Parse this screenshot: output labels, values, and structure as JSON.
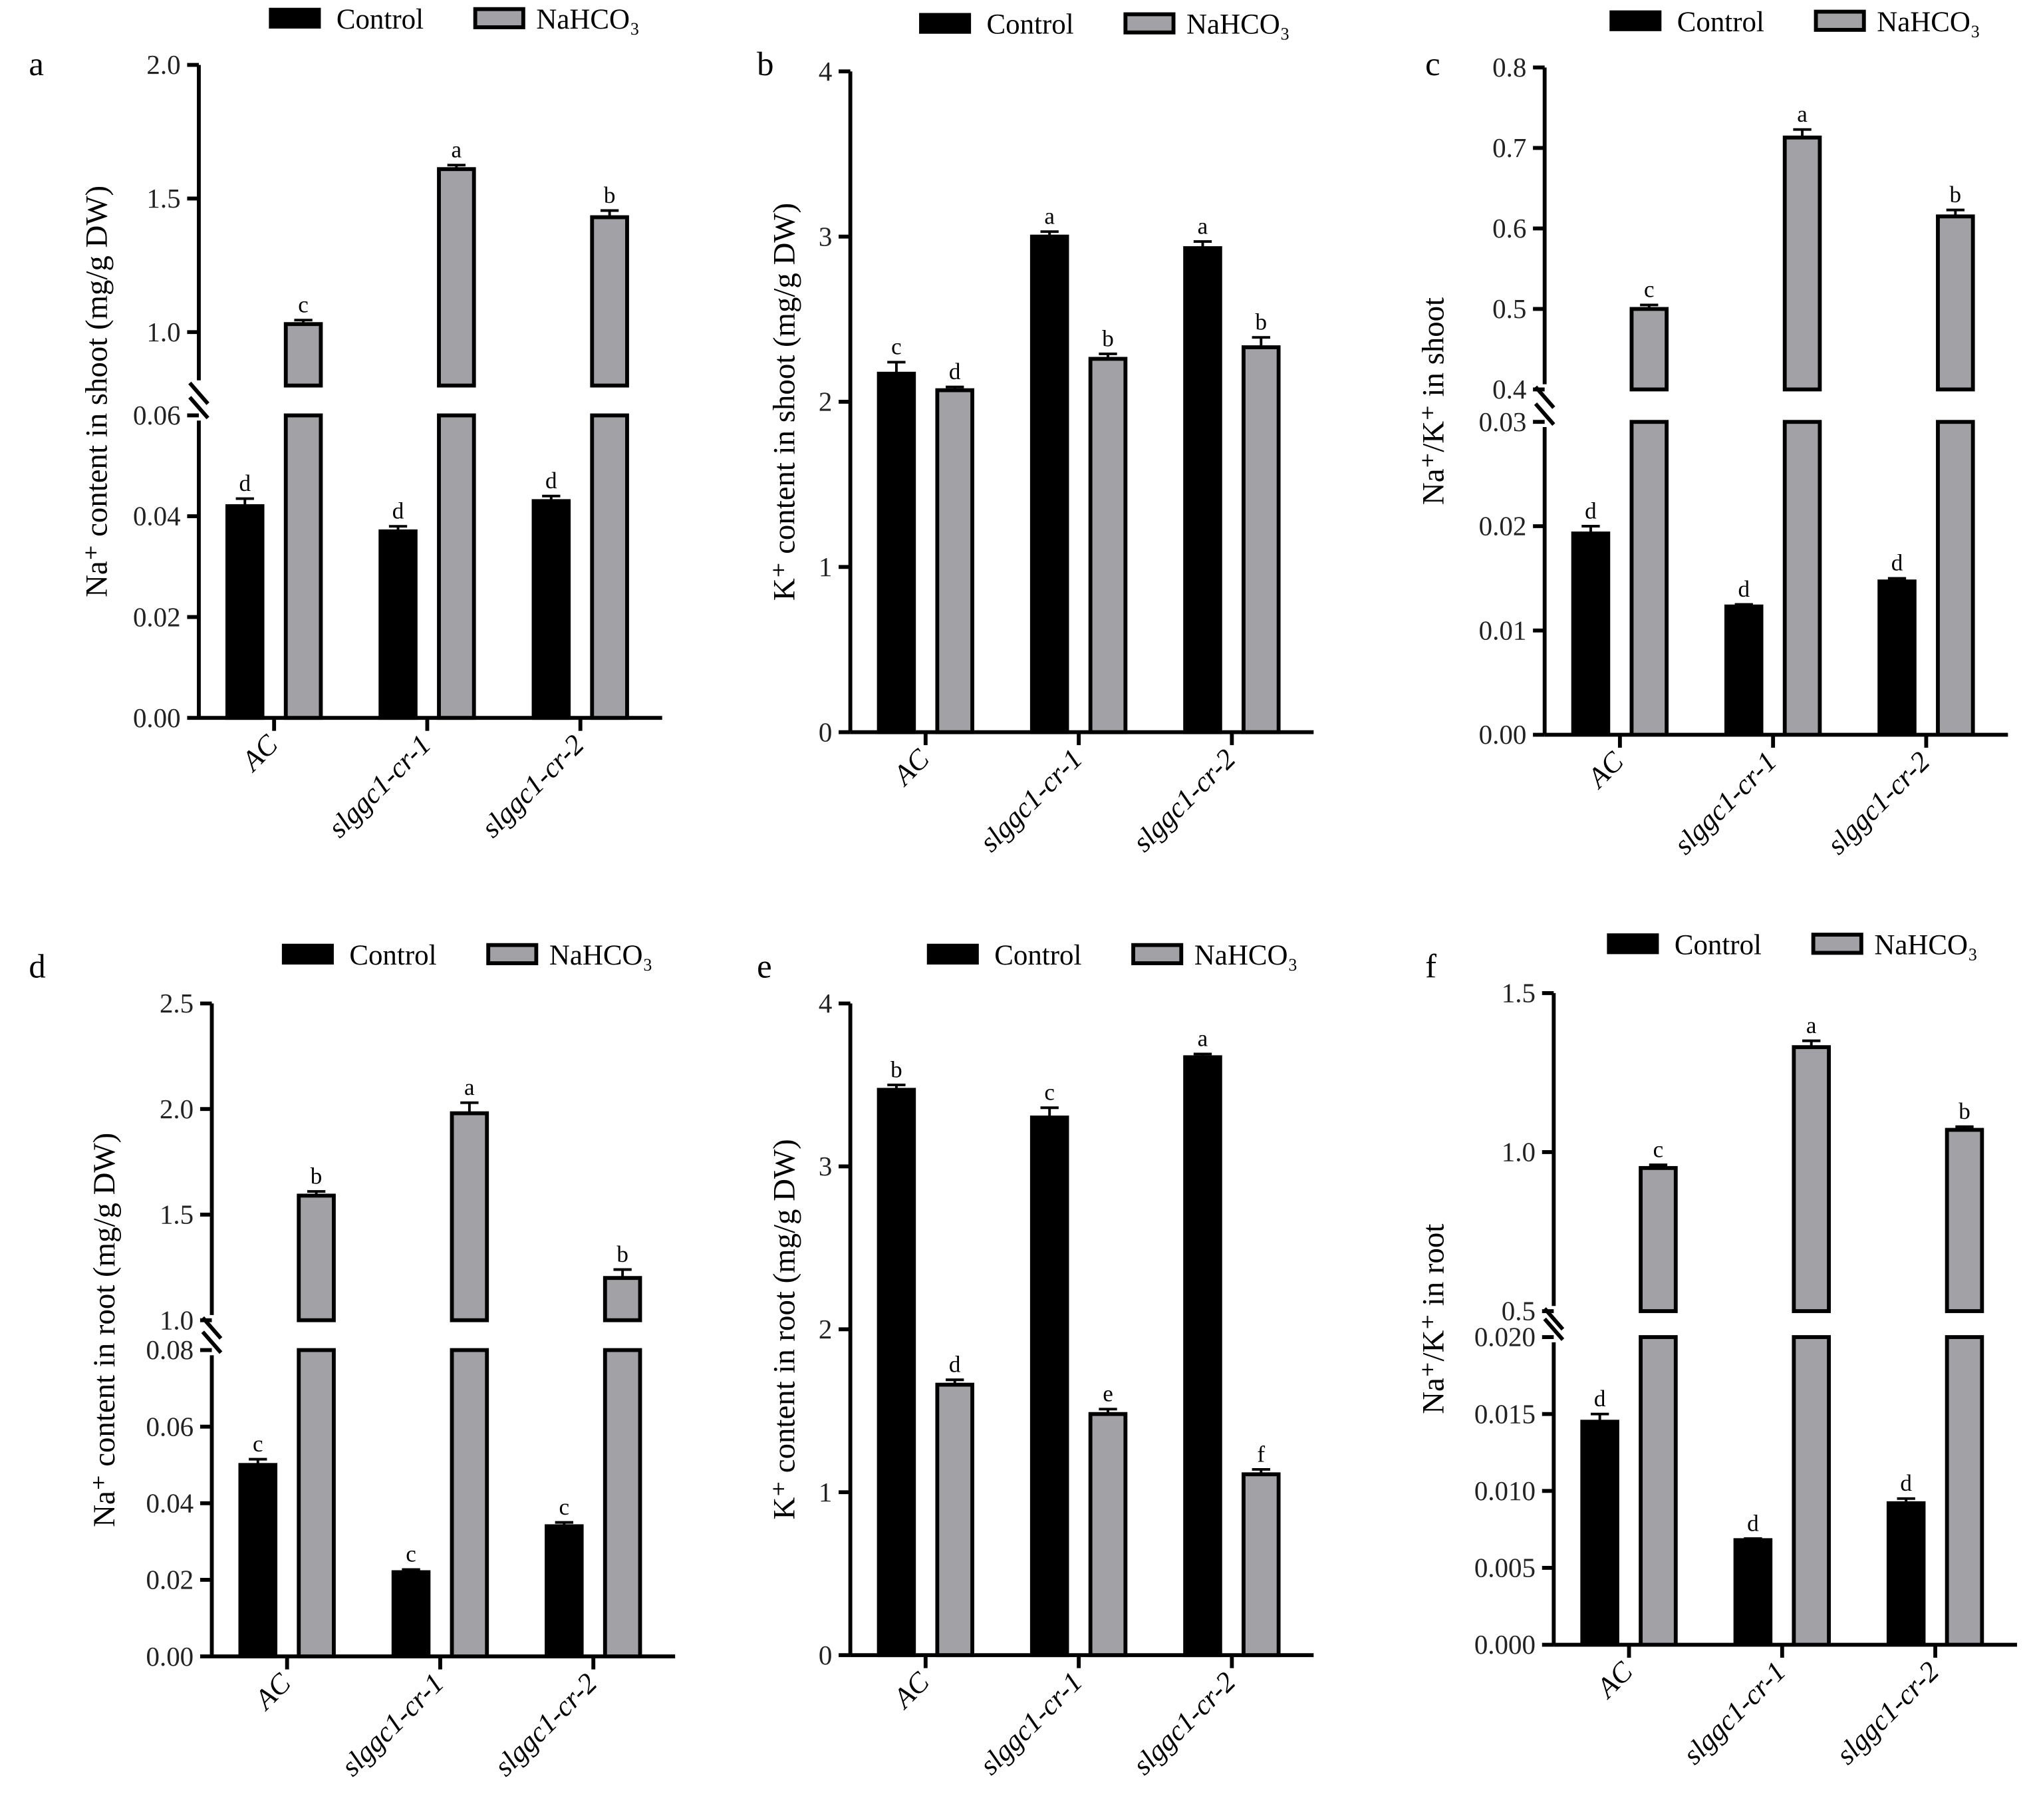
{
  "legend": {
    "control": "Control",
    "treatment": "NaHCO₃",
    "control_color": "#000000",
    "treatment_color": "#a2a2a6"
  },
  "chart_data": [
    {
      "panel": "a",
      "type": "bar",
      "ylabel": "Na⁺ content in shoot (mg/g DW)",
      "categories": [
        "AC",
        "slggc1-cr-1",
        "slggc1-cr-2"
      ],
      "y_axis": {
        "broken": true,
        "lower_range": [
          0,
          0.06
        ],
        "upper_range": [
          0.8,
          2.0
        ],
        "lower_ticks": [
          "0.00",
          "0.02",
          "0.04",
          "0.06"
        ],
        "upper_ticks": [
          "1.0",
          "1.5",
          "2.0"
        ]
      },
      "series": [
        {
          "name": "Control",
          "values": [
            0.042,
            0.037,
            0.043
          ],
          "errors": [
            0.0015,
            0.001,
            0.001
          ],
          "letters": [
            "d",
            "d",
            "d"
          ]
        },
        {
          "name": "NaHCO₃",
          "values": [
            1.03,
            1.61,
            1.43
          ],
          "errors": [
            0.015,
            0.015,
            0.025
          ],
          "letters": [
            "c",
            "a",
            "b"
          ]
        }
      ]
    },
    {
      "panel": "b",
      "type": "bar",
      "ylabel": "K⁺ content in shoot (mg/g DW)",
      "categories": [
        "AC",
        "slggc1-cr-1",
        "slggc1-cr-2"
      ],
      "y_axis": {
        "broken": false,
        "range": [
          0,
          4
        ],
        "ticks": [
          "0",
          "1",
          "2",
          "3",
          "4"
        ]
      },
      "series": [
        {
          "name": "Control",
          "values": [
            2.17,
            3.0,
            2.93
          ],
          "errors": [
            0.07,
            0.03,
            0.04
          ],
          "letters": [
            "c",
            "a",
            "a"
          ]
        },
        {
          "name": "NaHCO₃",
          "values": [
            2.07,
            2.26,
            2.33
          ],
          "errors": [
            0.02,
            0.03,
            0.06
          ],
          "letters": [
            "d",
            "b",
            "b"
          ]
        }
      ]
    },
    {
      "panel": "c",
      "type": "bar",
      "ylabel": "Na⁺/K⁺ in shoot",
      "categories": [
        "AC",
        "slggc1-cr-1",
        "slggc1-cr-2"
      ],
      "y_axis": {
        "broken": true,
        "lower_range": [
          0,
          0.03
        ],
        "upper_range": [
          0.4,
          0.8
        ],
        "lower_ticks": [
          "0.00",
          "0.01",
          "0.02",
          "0.03"
        ],
        "upper_ticks": [
          "0.4",
          "0.5",
          "0.6",
          "0.7",
          "0.8"
        ]
      },
      "series": [
        {
          "name": "Control",
          "values": [
            0.0193,
            0.0123,
            0.0147
          ],
          "errors": [
            0.0007,
            0.0002,
            0.0003
          ],
          "letters": [
            "d",
            "d",
            "d"
          ]
        },
        {
          "name": "NaHCO₃",
          "values": [
            0.5,
            0.713,
            0.615
          ],
          "errors": [
            0.005,
            0.01,
            0.008
          ],
          "letters": [
            "c",
            "a",
            "b"
          ]
        }
      ]
    },
    {
      "panel": "d",
      "type": "bar",
      "ylabel": "Na⁺ content in root (mg/g DW)",
      "categories": [
        "AC",
        "slggc1-cr-1",
        "slggc1-cr-2"
      ],
      "y_axis": {
        "broken": true,
        "lower_range": [
          0,
          0.08
        ],
        "upper_range": [
          1.0,
          2.5
        ],
        "lower_ticks": [
          "0.00",
          "0.02",
          "0.04",
          "0.06",
          "0.08"
        ],
        "upper_ticks": [
          "1.0",
          "1.5",
          "2.0",
          "2.5"
        ]
      },
      "series": [
        {
          "name": "Control",
          "values": [
            0.05,
            0.022,
            0.034
          ],
          "errors": [
            0.0015,
            0.0007,
            0.001
          ],
          "letters": [
            "c",
            "c",
            "c"
          ]
        },
        {
          "name": "NaHCO₃",
          "values": [
            1.59,
            1.98,
            1.2
          ],
          "errors": [
            0.02,
            0.05,
            0.04
          ],
          "letters": [
            "b",
            "a",
            "b"
          ]
        }
      ]
    },
    {
      "panel": "e",
      "type": "bar",
      "ylabel": "K⁺ content in root (mg/g DW)",
      "categories": [
        "AC",
        "slggc1-cr-1",
        "slggc1-cr-2"
      ],
      "y_axis": {
        "broken": false,
        "range": [
          0,
          4
        ],
        "ticks": [
          "0",
          "1",
          "2",
          "3",
          "4"
        ]
      },
      "series": [
        {
          "name": "Control",
          "values": [
            3.47,
            3.3,
            3.67
          ],
          "errors": [
            0.03,
            0.06,
            0.02
          ],
          "letters": [
            "b",
            "c",
            "a"
          ]
        },
        {
          "name": "NaHCO₃",
          "values": [
            1.66,
            1.48,
            1.11
          ],
          "errors": [
            0.03,
            0.03,
            0.03
          ],
          "letters": [
            "d",
            "e",
            "f"
          ]
        }
      ]
    },
    {
      "panel": "f",
      "type": "bar",
      "ylabel": "Na⁺/K⁺ in root",
      "categories": [
        "AC",
        "slggc1-cr-1",
        "slggc1-cr-2"
      ],
      "y_axis": {
        "broken": true,
        "lower_range": [
          0,
          0.02
        ],
        "upper_range": [
          0.5,
          1.5
        ],
        "lower_ticks": [
          "0.000",
          "0.005",
          "0.010",
          "0.015",
          "0.020"
        ],
        "upper_ticks": [
          "0.5",
          "1.0",
          "1.5"
        ]
      },
      "series": [
        {
          "name": "Control",
          "values": [
            0.0145,
            0.0068,
            0.0092
          ],
          "errors": [
            0.0005,
            0.0001,
            0.0003
          ],
          "letters": [
            "d",
            "d",
            "d"
          ]
        },
        {
          "name": "NaHCO₃",
          "values": [
            0.95,
            1.33,
            1.07
          ],
          "errors": [
            0.01,
            0.02,
            0.01
          ],
          "letters": [
            "c",
            "a",
            "b"
          ]
        }
      ]
    }
  ]
}
